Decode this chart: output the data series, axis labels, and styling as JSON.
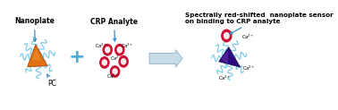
{
  "background_color": "#ffffff",
  "label_nanoplate": "Nanoplate",
  "label_pc": "PC",
  "label_crp": "CRP Analyte",
  "label_result": "Spectrally red-shifted  nanoplate sensor\non binding to CRP analyte",
  "text_color": "#000000",
  "annotation_color": "#3a8abf",
  "ligand_color": "#7ecce8",
  "crp_ring_color": "#cc1133",
  "crp_bg_color": "#f5eeee",
  "plus_color": "#4daad4",
  "arrow_face": "#c8dce8",
  "arrow_edge": "#9ab8cc",
  "tri_orange_main": "#e07010",
  "tri_orange_hi": "#f09030",
  "tri_orange_edge": "#a04000",
  "tri_purple_main": "#2a0a7e",
  "tri_purple_hi": "#7733bb",
  "tri_purple_edge": "#180840",
  "figsize": [
    3.78,
    1.23
  ],
  "dpi": 100,
  "xlim": [
    0,
    10
  ],
  "ylim": [
    0,
    3.25
  ]
}
